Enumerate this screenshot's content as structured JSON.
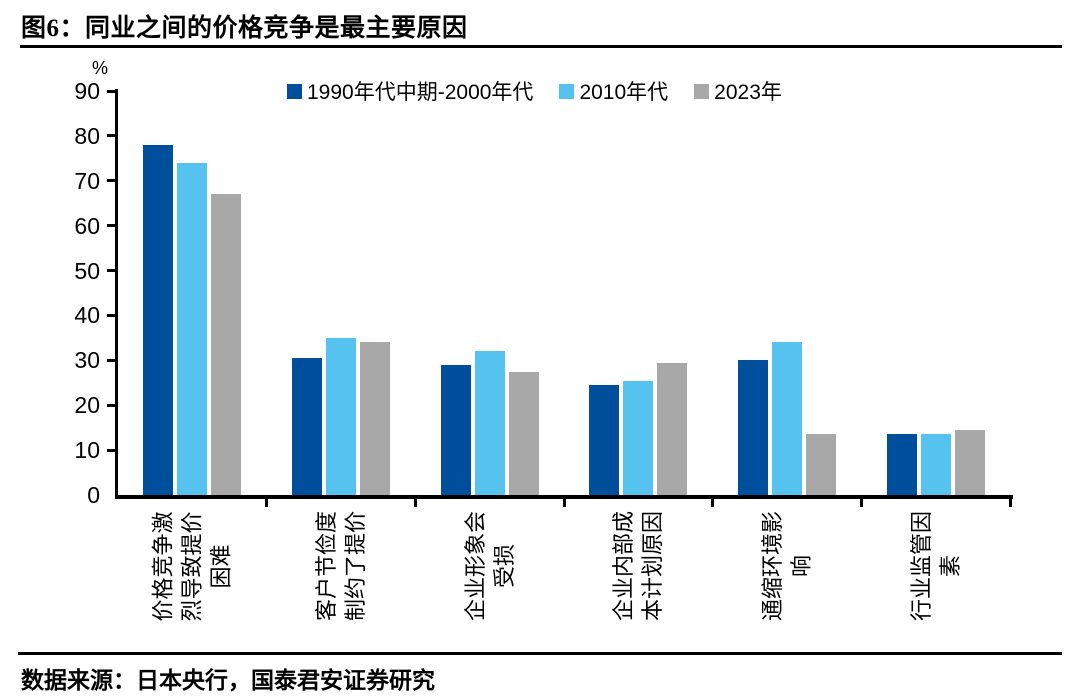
{
  "figure": {
    "title": "图6：同业之间的价格竞争是最主要原因",
    "source": "数据来源：日本央行，国泰君安证券研究"
  },
  "chart_data": {
    "type": "bar",
    "unit_label": "%",
    "ylim": [
      0,
      90
    ],
    "ytick_step": 10,
    "grid": false,
    "legend_position": "top",
    "categories": [
      "价格竞争激烈导致提价困难",
      "客户节俭度制约了提价",
      "企业形象会受损",
      "企业内部成本计划原因",
      "通缩环境影响",
      "行业监管因素"
    ],
    "category_label_lines": [
      "价格竞争激\n烈导致提价\n困难",
      "客户节俭度\n制约了提价",
      "企业形象会\n受损",
      "企业内部成\n本计划原因",
      "通缩环境影\n响",
      "行业监管因\n素"
    ],
    "series": [
      {
        "name": "1990年代中期-2000年代",
        "color": "#004F9C",
        "values": [
          78,
          30.5,
          29,
          24.5,
          30,
          13.5
        ]
      },
      {
        "name": "2010年代",
        "color": "#55C2F0",
        "values": [
          74,
          35,
          32,
          25.5,
          34,
          13.5
        ]
      },
      {
        "name": "2023年",
        "color": "#A8A8A8",
        "values": [
          67,
          34,
          27.5,
          29.5,
          13.5,
          14.5
        ]
      }
    ]
  },
  "colors": {
    "axis": "#000000",
    "text": "#000000",
    "background": "#FFFFFF"
  }
}
